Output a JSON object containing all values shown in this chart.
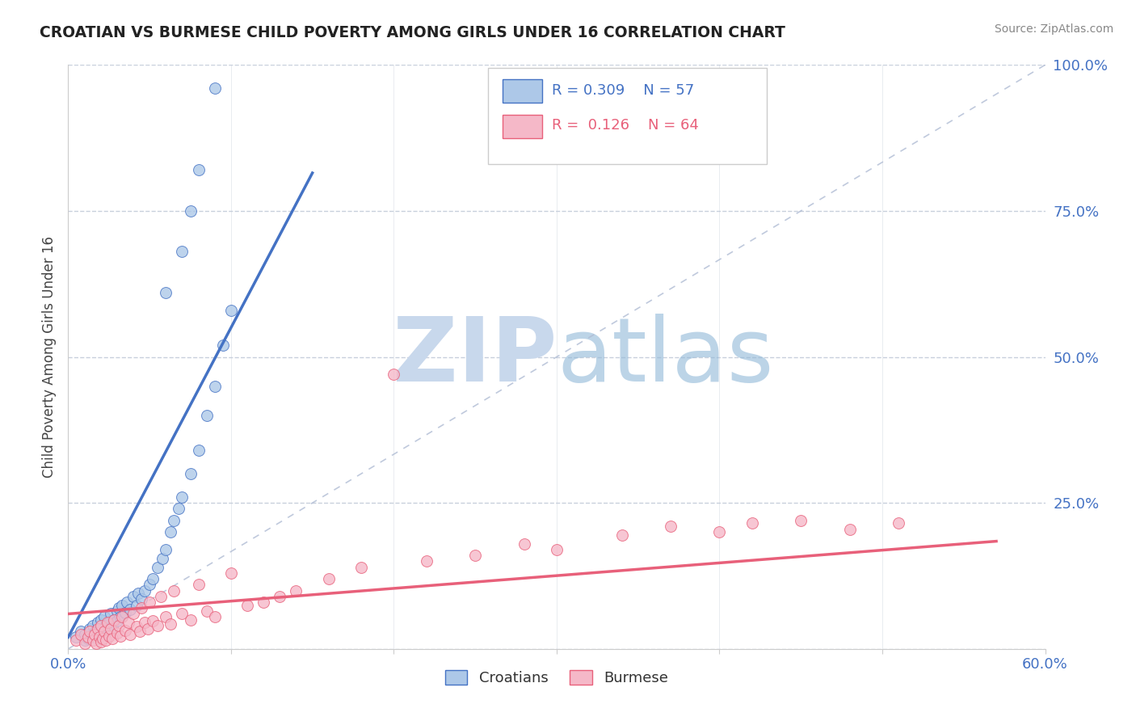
{
  "title": "CROATIAN VS BURMESE CHILD POVERTY AMONG GIRLS UNDER 16 CORRELATION CHART",
  "source": "Source: ZipAtlas.com",
  "ylabel": "Child Poverty Among Girls Under 16",
  "xlim": [
    0,
    0.6
  ],
  "ylim": [
    0,
    1.0
  ],
  "croatian_R": 0.309,
  "croatian_N": 57,
  "burmese_R": 0.126,
  "burmese_N": 64,
  "croatian_color": "#adc8e8",
  "burmese_color": "#f5b8c8",
  "croatian_line_color": "#4472c4",
  "burmese_line_color": "#e8607a",
  "ref_line_color": "#b0bcd4",
  "legend_label_croatian": "Croatians",
  "legend_label_burmese": "Burmese",
  "croatian_x": [
    0.005,
    0.008,
    0.01,
    0.01,
    0.012,
    0.013,
    0.015,
    0.015,
    0.016,
    0.017,
    0.018,
    0.018,
    0.019,
    0.02,
    0.02,
    0.021,
    0.022,
    0.022,
    0.023,
    0.024,
    0.025,
    0.026,
    0.027,
    0.028,
    0.03,
    0.03,
    0.031,
    0.032,
    0.033,
    0.035,
    0.036,
    0.038,
    0.04,
    0.042,
    0.043,
    0.045,
    0.047,
    0.05,
    0.052,
    0.055,
    0.058,
    0.06,
    0.063,
    0.065,
    0.068,
    0.07,
    0.075,
    0.08,
    0.085,
    0.09,
    0.095,
    0.1,
    0.06,
    0.07,
    0.075,
    0.08,
    0.09
  ],
  "croatian_y": [
    0.02,
    0.03,
    0.015,
    0.025,
    0.018,
    0.035,
    0.022,
    0.04,
    0.028,
    0.032,
    0.018,
    0.045,
    0.025,
    0.03,
    0.05,
    0.035,
    0.028,
    0.055,
    0.04,
    0.032,
    0.045,
    0.06,
    0.038,
    0.05,
    0.065,
    0.048,
    0.07,
    0.055,
    0.075,
    0.062,
    0.08,
    0.068,
    0.09,
    0.075,
    0.095,
    0.085,
    0.1,
    0.11,
    0.12,
    0.14,
    0.155,
    0.17,
    0.2,
    0.22,
    0.24,
    0.26,
    0.3,
    0.34,
    0.4,
    0.45,
    0.52,
    0.58,
    0.61,
    0.68,
    0.75,
    0.82,
    0.96
  ],
  "burmese_x": [
    0.005,
    0.008,
    0.01,
    0.012,
    0.013,
    0.015,
    0.016,
    0.017,
    0.018,
    0.019,
    0.02,
    0.02,
    0.021,
    0.022,
    0.023,
    0.024,
    0.025,
    0.026,
    0.027,
    0.028,
    0.03,
    0.031,
    0.032,
    0.033,
    0.035,
    0.037,
    0.038,
    0.04,
    0.042,
    0.044,
    0.045,
    0.047,
    0.049,
    0.05,
    0.052,
    0.055,
    0.057,
    0.06,
    0.063,
    0.065,
    0.07,
    0.075,
    0.08,
    0.085,
    0.09,
    0.1,
    0.11,
    0.12,
    0.13,
    0.14,
    0.16,
    0.18,
    0.2,
    0.22,
    0.25,
    0.28,
    0.3,
    0.34,
    0.37,
    0.4,
    0.42,
    0.45,
    0.48,
    0.51
  ],
  "burmese_y": [
    0.015,
    0.025,
    0.01,
    0.02,
    0.03,
    0.015,
    0.025,
    0.01,
    0.035,
    0.02,
    0.012,
    0.04,
    0.018,
    0.03,
    0.015,
    0.045,
    0.022,
    0.035,
    0.018,
    0.05,
    0.028,
    0.04,
    0.022,
    0.055,
    0.032,
    0.045,
    0.025,
    0.06,
    0.038,
    0.03,
    0.07,
    0.045,
    0.035,
    0.08,
    0.048,
    0.04,
    0.09,
    0.055,
    0.042,
    0.1,
    0.06,
    0.05,
    0.11,
    0.065,
    0.055,
    0.13,
    0.075,
    0.08,
    0.09,
    0.1,
    0.12,
    0.14,
    0.47,
    0.15,
    0.16,
    0.18,
    0.17,
    0.195,
    0.21,
    0.2,
    0.215,
    0.22,
    0.205,
    0.215
  ]
}
